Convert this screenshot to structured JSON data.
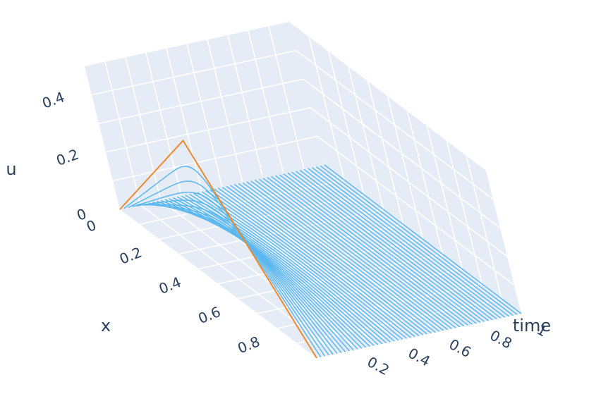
{
  "chart_data": {
    "type": "surface-lines-3d",
    "description_free": true,
    "axes": {
      "x": {
        "title": "x",
        "range": [
          0,
          1
        ],
        "ticks": [
          0,
          0.2,
          0.4,
          0.6,
          0.8
        ],
        "tick_labels": [
          "0",
          "0.2",
          "0.4",
          "0.6",
          "0.8"
        ]
      },
      "time": {
        "title": "time",
        "range": [
          0,
          1
        ],
        "ticks": [
          0.2,
          0.4,
          0.6,
          0.8,
          1
        ],
        "tick_labels": [
          "0.2",
          "0.4",
          "0.6",
          "0.8",
          "1"
        ]
      },
      "u": {
        "title": "u",
        "range": [
          0,
          0.5
        ],
        "ticks": [
          0,
          0.2,
          0.4
        ],
        "tick_labels": [
          "0",
          "0.2",
          "0.4"
        ]
      }
    },
    "initial_condition": {
      "time": 0,
      "x": [
        0,
        0.5,
        1
      ],
      "u": [
        0,
        0.5,
        0
      ],
      "color": "#ef8a2c"
    },
    "solution_lines": {
      "color": "#5bb8f0",
      "count": 50,
      "time_range": [
        0.02,
        1.0
      ],
      "peaks_at_x_half": [
        0.405,
        0.35,
        0.33,
        0.31,
        0.3,
        0.29,
        0.28,
        0.27,
        0.26,
        0.25
      ]
    },
    "grid": true,
    "background": "#e5ecf6"
  }
}
